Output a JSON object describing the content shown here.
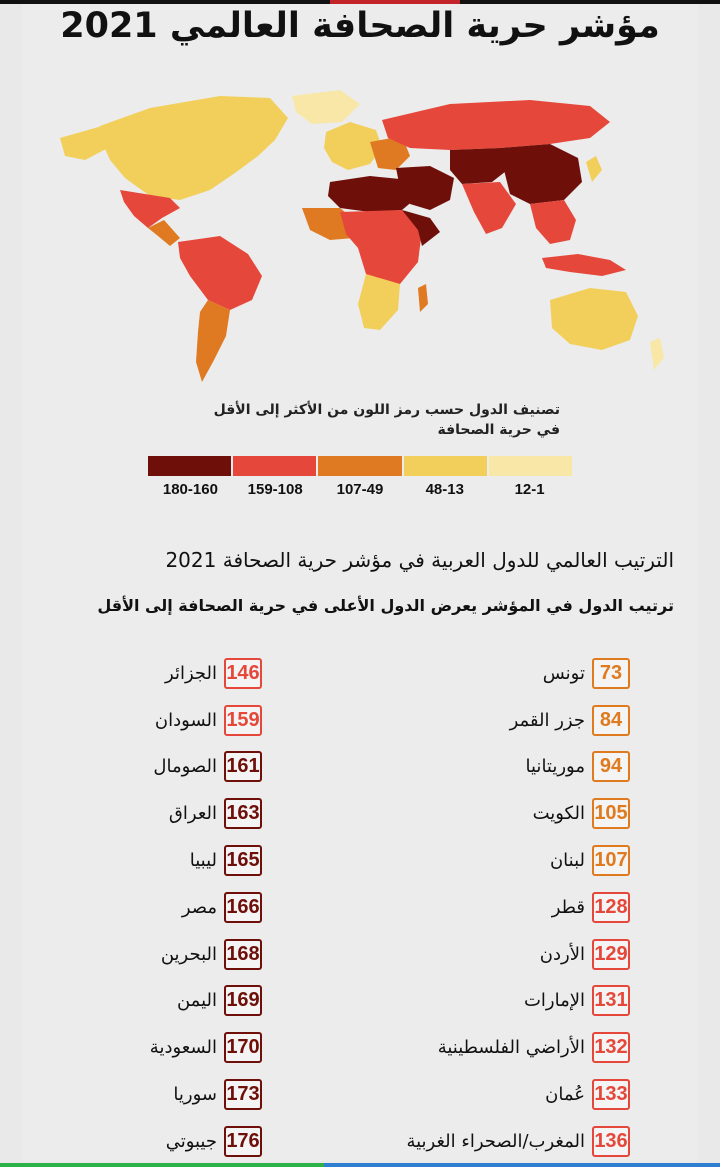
{
  "title": "مؤشر حرية الصحافة العالمي 2021",
  "legend": {
    "title_line1": "تصنيف الدول حسب رمز  اللون من الأكثر إلى الأقل",
    "title_line2": "في حرية الصحافة",
    "items": [
      {
        "label": "180-160",
        "color": "#6e0f0a"
      },
      {
        "label": "159-108",
        "color": "#e5483a"
      },
      {
        "label": "107-49",
        "color": "#e07a22"
      },
      {
        "label": "48-13",
        "color": "#f2cf5b"
      },
      {
        "label": "12-1",
        "color": "#f8e7a6"
      }
    ]
  },
  "ranking": {
    "subtitle": "الترتيب العالمي للدول العربية في مؤشر حرية الصحافة 2021",
    "note": "ترتيب الدول في المؤشر يعرض الدول الأعلى في حرية الصحافة إلى الأقل",
    "right_column": [
      {
        "rank": "73",
        "name": "تونس",
        "color": "#df7a1e"
      },
      {
        "rank": "84",
        "name": "جزر القمر",
        "color": "#df7a1e"
      },
      {
        "rank": "94",
        "name": "موريتانيا",
        "color": "#df7a1e"
      },
      {
        "rank": "105",
        "name": "الكويت",
        "color": "#df7a1e"
      },
      {
        "rank": "107",
        "name": "لبنان",
        "color": "#df7a1e"
      },
      {
        "rank": "128",
        "name": "قطر",
        "color": "#e5483a"
      },
      {
        "rank": "129",
        "name": "الأردن",
        "color": "#e5483a"
      },
      {
        "rank": "131",
        "name": "الإمارات",
        "color": "#e5483a"
      },
      {
        "rank": "132",
        "name": "الأراضي الفلسطينية",
        "color": "#e5483a"
      },
      {
        "rank": "133",
        "name": "عُمان",
        "color": "#e5483a"
      },
      {
        "rank": "136",
        "name": "المغرب/الصحراء الغربية",
        "color": "#e5483a"
      }
    ],
    "left_column": [
      {
        "rank": "146",
        "name": "الجزائر",
        "color": "#e5483a"
      },
      {
        "rank": "159",
        "name": "السودان",
        "color": "#e5483a"
      },
      {
        "rank": "161",
        "name": "الصومال",
        "color": "#6e0f0a"
      },
      {
        "rank": "163",
        "name": "العراق",
        "color": "#6e0f0a"
      },
      {
        "rank": "165",
        "name": "ليبيا",
        "color": "#6e0f0a"
      },
      {
        "rank": "166",
        "name": "مصر",
        "color": "#6e0f0a"
      },
      {
        "rank": "168",
        "name": "البحرين",
        "color": "#6e0f0a"
      },
      {
        "rank": "169",
        "name": "اليمن",
        "color": "#6e0f0a"
      },
      {
        "rank": "170",
        "name": "السعودية",
        "color": "#6e0f0a"
      },
      {
        "rank": "173",
        "name": "سوريا",
        "color": "#6e0f0a"
      },
      {
        "rank": "176",
        "name": "جيبوتي",
        "color": "#6e0f0a"
      }
    ]
  }
}
